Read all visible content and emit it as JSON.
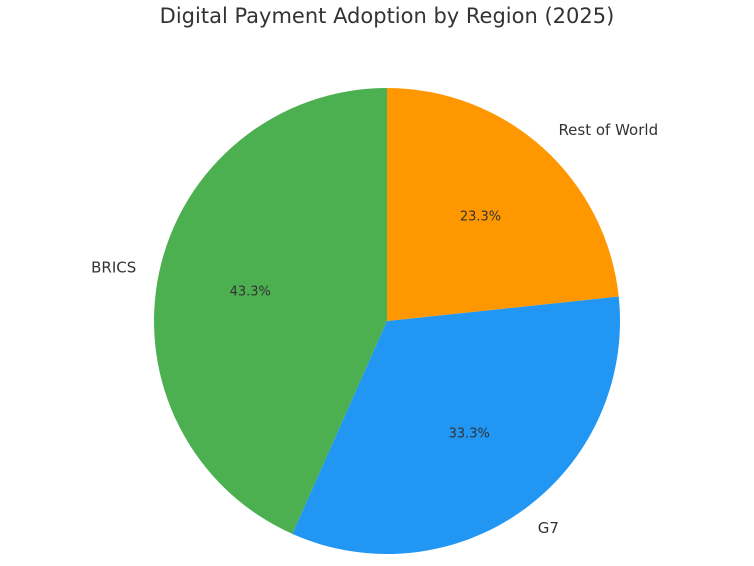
{
  "chart_data": {
    "type": "pie",
    "title": "Digital Payment Adoption by Region (2025)",
    "categories": [
      "BRICS",
      "G7",
      "Rest of World"
    ],
    "values": [
      43.3,
      33.3,
      23.3
    ],
    "value_labels": [
      "43.3%",
      "33.3%",
      "23.3%"
    ],
    "colors": [
      "#4caf50",
      "#2196f3",
      "#ff9800"
    ]
  }
}
